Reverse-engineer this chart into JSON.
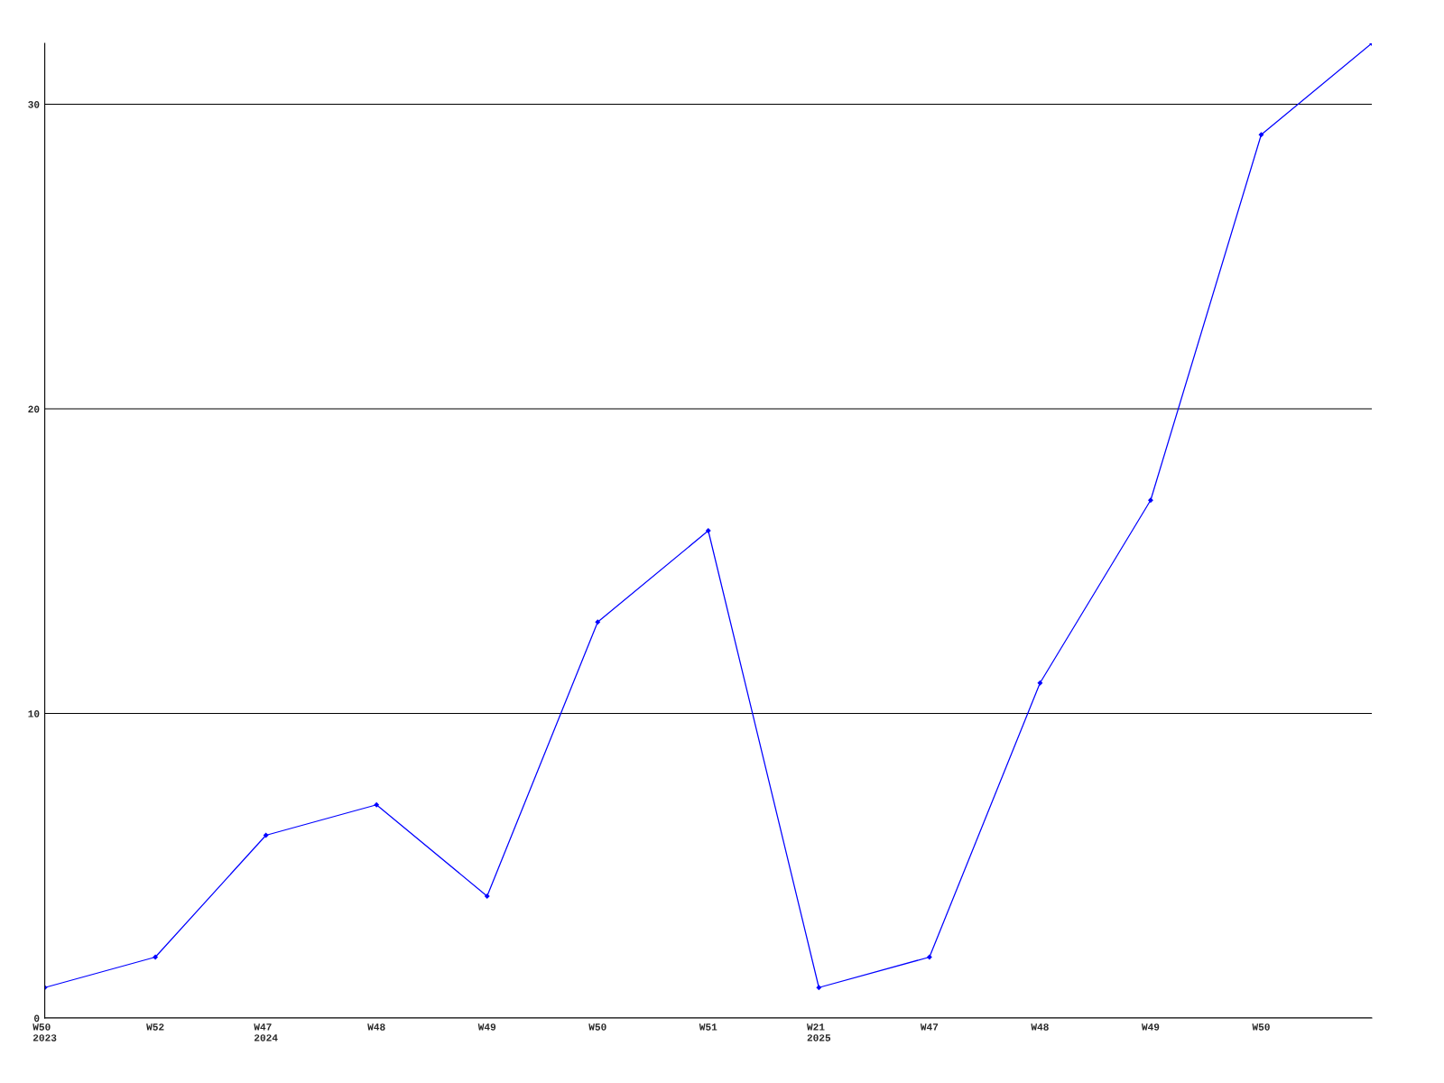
{
  "chart_data": {
    "type": "line",
    "categories": [
      "W50\n2023",
      "W52",
      "W47\n2024",
      "W48",
      "W49",
      "W50",
      "W51",
      "W21\n2025",
      "W47",
      "W48",
      "W49",
      "W50",
      null
    ],
    "series": [
      {
        "color": "#0000ff",
        "values": [
          1,
          2,
          6,
          7,
          4,
          13,
          16,
          1,
          2,
          11,
          17,
          29,
          32
        ]
      }
    ],
    "ylim": [
      0,
      32
    ],
    "yticks": [
      0,
      10,
      20,
      30
    ],
    "grid": "y",
    "marker": "diamond",
    "line_style": "solid"
  }
}
